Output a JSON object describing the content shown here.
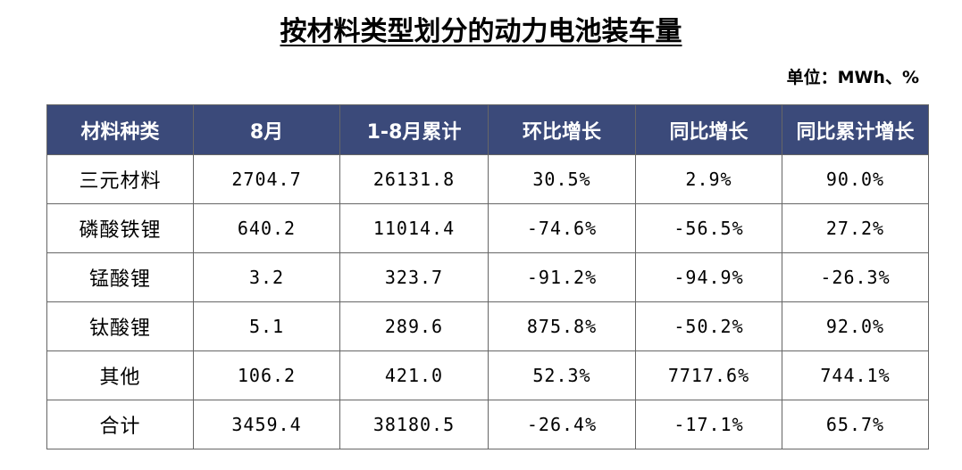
{
  "title": "按材料类型划分的动力电池装车量",
  "unit": "单位：MWh、%",
  "table": {
    "headers": [
      "材料种类",
      "8月",
      "1-8月累计",
      "环比增长",
      "同比增长",
      "同比累计增长"
    ],
    "rows": [
      [
        "三元材料",
        "2704.7",
        "26131.8",
        "30.5%",
        "2.9%",
        "90.0%"
      ],
      [
        "磷酸铁锂",
        "640.2",
        "11014.4",
        "-74.6%",
        "-56.5%",
        "27.2%"
      ],
      [
        "锰酸锂",
        "3.2",
        "323.7",
        "-91.2%",
        "-94.9%",
        "-26.3%"
      ],
      [
        "钛酸锂",
        "5.1",
        "289.6",
        "875.8%",
        "-50.2%",
        "92.0%"
      ],
      [
        "其他",
        "106.2",
        "421.0",
        "52.3%",
        "7717.6%",
        "744.1%"
      ],
      [
        "合计",
        "3459.4",
        "38180.5",
        "-26.4%",
        "-17.1%",
        "65.7%"
      ]
    ]
  },
  "colors": {
    "header_bg": "#3b4a7a",
    "header_text": "#ffffff",
    "border": "#666666"
  }
}
